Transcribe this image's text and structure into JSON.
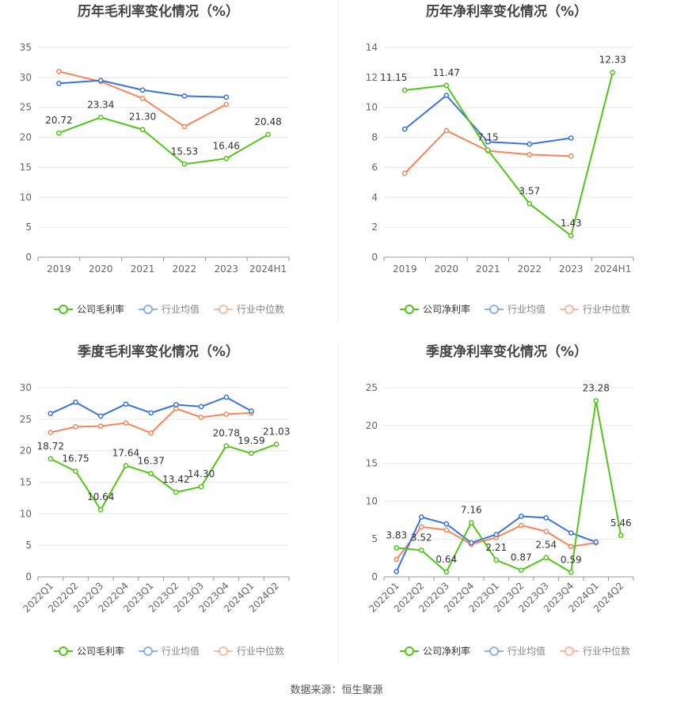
{
  "source": "数据来源：恒生聚源",
  "colors": {
    "company": "#52c41a",
    "avg": "#3a73db",
    "median": "#f5855b",
    "grid": "#e8e8e8",
    "axis": "#999999",
    "text": "#666666",
    "title": "#444444"
  },
  "chart_data": [
    {
      "type": "line",
      "title": "历年毛利率变化情况（%）",
      "categories": [
        "2019",
        "2020",
        "2021",
        "2022",
        "2023",
        "2024H1"
      ],
      "ylim": [
        0,
        35
      ],
      "yticks": [
        "0",
        "5",
        "10",
        "15",
        "20",
        "25",
        "30",
        "35"
      ],
      "grid": true,
      "legend_position": "bottom",
      "series": [
        {
          "name": "公司毛利率",
          "role": "company",
          "values": [
            20.72,
            23.34,
            21.3,
            15.53,
            16.46,
            20.48
          ],
          "labels": [
            "20.72",
            "23.34",
            "21.30",
            "15.53",
            "16.46",
            "20.48"
          ]
        },
        {
          "name": "行业均值",
          "role": "avg",
          "values": [
            29.0,
            29.5,
            27.9,
            26.9,
            26.7,
            null
          ]
        },
        {
          "name": "行业中位数",
          "role": "median",
          "values": [
            31.0,
            29.3,
            26.5,
            21.8,
            25.5,
            null
          ]
        }
      ]
    },
    {
      "type": "line",
      "title": "历年净利率变化情况（%）",
      "categories": [
        "2019",
        "2020",
        "2021",
        "2022",
        "2023",
        "2024H1"
      ],
      "ylim": [
        0,
        14
      ],
      "yticks": [
        "0",
        "2",
        "4",
        "6",
        "8",
        "10",
        "12",
        "14"
      ],
      "grid": true,
      "legend_position": "bottom",
      "series": [
        {
          "name": "公司净利率",
          "role": "company",
          "values": [
            11.15,
            11.47,
            7.15,
            3.57,
            1.43,
            12.33
          ],
          "labels": [
            "11.15",
            "11.47",
            "7.15",
            "3.57",
            "1.43",
            "12.33"
          ]
        },
        {
          "name": "行业均值",
          "role": "avg",
          "values": [
            8.55,
            10.8,
            7.7,
            7.55,
            7.95,
            null
          ]
        },
        {
          "name": "行业中位数",
          "role": "median",
          "values": [
            5.6,
            8.45,
            7.1,
            6.85,
            6.75,
            null
          ]
        }
      ]
    },
    {
      "type": "line",
      "title": "季度毛利率变化情况（%）",
      "categories": [
        "2022Q1",
        "2022Q2",
        "2022Q3",
        "2022Q4",
        "2023Q1",
        "2023Q2",
        "2023Q3",
        "2023Q4",
        "2024Q1",
        "2024Q2"
      ],
      "ylim": [
        0,
        30
      ],
      "yticks": [
        "0",
        "5",
        "10",
        "15",
        "20",
        "25",
        "30"
      ],
      "grid": true,
      "legend_position": "bottom",
      "series": [
        {
          "name": "公司毛利率",
          "role": "company",
          "values": [
            18.72,
            16.75,
            10.64,
            17.64,
            16.37,
            13.42,
            14.3,
            20.78,
            19.59,
            21.03
          ],
          "labels": [
            "18.72",
            "16.75",
            "10.64",
            "17.64",
            "16.37",
            "13.42",
            "14.30",
            "20.78",
            "19.59",
            "21.03"
          ]
        },
        {
          "name": "行业均值",
          "role": "avg",
          "values": [
            25.9,
            27.7,
            25.5,
            27.4,
            26.0,
            27.3,
            27.0,
            28.5,
            26.3,
            null
          ]
        },
        {
          "name": "行业中位数",
          "role": "median",
          "values": [
            22.9,
            23.8,
            23.9,
            24.4,
            22.8,
            26.7,
            25.3,
            25.8,
            26.0,
            null
          ]
        }
      ]
    },
    {
      "type": "line",
      "title": "季度净利率变化情况（%）",
      "categories": [
        "2022Q1",
        "2022Q2",
        "2022Q3",
        "2022Q4",
        "2023Q1",
        "2023Q2",
        "2023Q3",
        "2023Q4",
        "2024Q1",
        "2024Q2"
      ],
      "ylim": [
        0,
        25
      ],
      "yticks": [
        "0",
        "5",
        "10",
        "15",
        "20",
        "25"
      ],
      "grid": true,
      "legend_position": "bottom",
      "series": [
        {
          "name": "公司净利率",
          "role": "company",
          "values": [
            3.83,
            3.52,
            0.64,
            7.16,
            2.21,
            0.87,
            2.54,
            0.59,
            23.28,
            5.46
          ],
          "labels": [
            "3.83",
            "3.52",
            "0.64",
            "7.16",
            "2.21",
            "0.87",
            "2.54",
            "0.59",
            "23.28",
            "5.46"
          ]
        },
        {
          "name": "行业均值",
          "role": "avg",
          "values": [
            0.7,
            7.9,
            7.0,
            4.5,
            5.6,
            8.0,
            7.8,
            5.8,
            4.6,
            null
          ]
        },
        {
          "name": "行业中位数",
          "role": "median",
          "values": [
            2.3,
            6.6,
            6.2,
            4.3,
            5.2,
            6.8,
            6.0,
            4.0,
            4.5,
            null
          ]
        }
      ]
    }
  ]
}
